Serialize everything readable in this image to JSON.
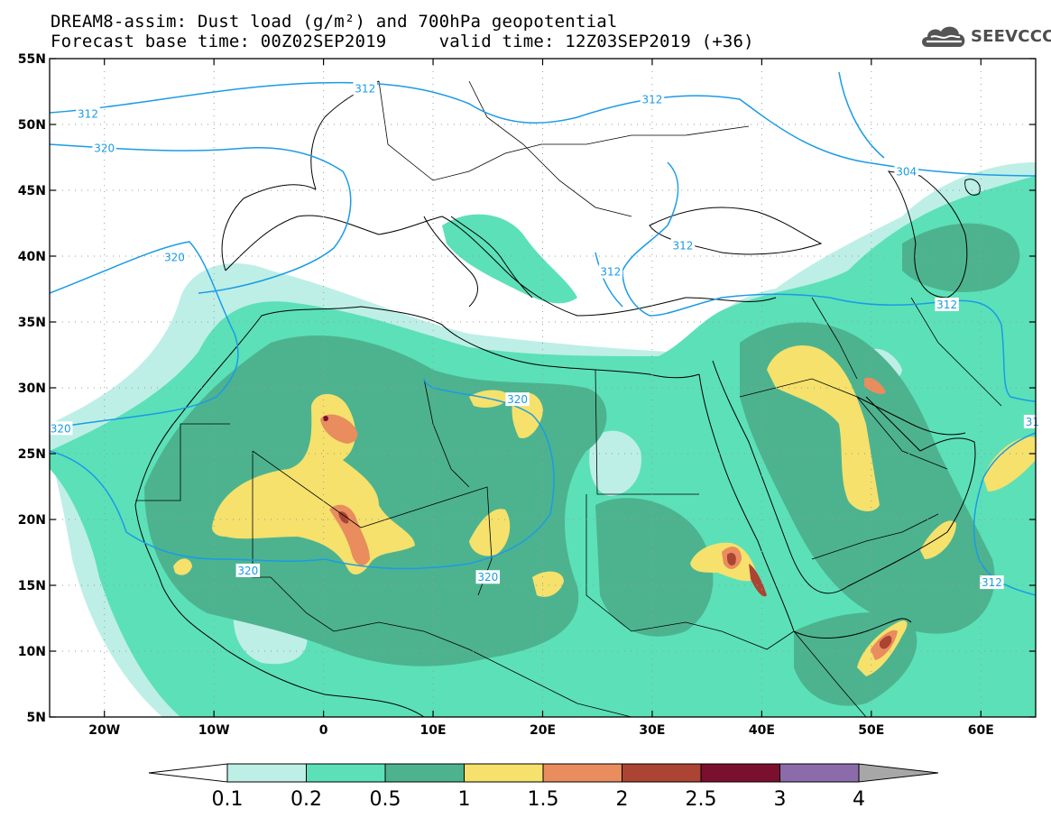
{
  "header": {
    "line1": "DREAM8-assim: Dust load (g/m²) and 700hPa geopotential",
    "line2": "Forecast base time: 00Z02SEP2019     valid time: 12Z03SEP2019 (+36)"
  },
  "logo": {
    "text": "SEEVCCC",
    "icon": "cloud-icon"
  },
  "map": {
    "lon_range": [
      -25,
      65
    ],
    "lat_range": [
      5,
      55
    ],
    "lon_ticks": [
      {
        "value": -20,
        "label": "20W"
      },
      {
        "value": -10,
        "label": "10W"
      },
      {
        "value": 0,
        "label": "0"
      },
      {
        "value": 10,
        "label": "10E"
      },
      {
        "value": 20,
        "label": "20E"
      },
      {
        "value": 30,
        "label": "30E"
      },
      {
        "value": 40,
        "label": "40E"
      },
      {
        "value": 50,
        "label": "50E"
      },
      {
        "value": 60,
        "label": "60E"
      }
    ],
    "lat_ticks": [
      {
        "value": 5,
        "label": "5N"
      },
      {
        "value": 10,
        "label": "10N"
      },
      {
        "value": 15,
        "label": "15N"
      },
      {
        "value": 20,
        "label": "20N"
      },
      {
        "value": 25,
        "label": "25N"
      },
      {
        "value": 30,
        "label": "30N"
      },
      {
        "value": 35,
        "label": "35N"
      },
      {
        "value": 40,
        "label": "40N"
      },
      {
        "value": 45,
        "label": "45N"
      },
      {
        "value": 50,
        "label": "50N"
      },
      {
        "value": 55,
        "label": "55N"
      }
    ],
    "contour_color": "#1a9be6",
    "contour_labels": [
      {
        "text": "312",
        "lon": -21.5,
        "lat": 50.8
      },
      {
        "text": "312",
        "lon": 3.8,
        "lat": 52.7
      },
      {
        "text": "312",
        "lon": 30.0,
        "lat": 51.9
      },
      {
        "text": "304",
        "lon": 53.2,
        "lat": 46.4
      },
      {
        "text": "320",
        "lon": -20.0,
        "lat": 48.2
      },
      {
        "text": "320",
        "lon": -13.6,
        "lat": 39.9
      },
      {
        "text": "312",
        "lon": 32.8,
        "lat": 40.8
      },
      {
        "text": "312",
        "lon": 26.2,
        "lat": 38.8
      },
      {
        "text": "312",
        "lon": 56.9,
        "lat": 36.3
      },
      {
        "text": "320",
        "lon": 17.7,
        "lat": 29.1
      },
      {
        "text": "320",
        "lon": -24.0,
        "lat": 26.9
      },
      {
        "text": "31",
        "lon": 64.7,
        "lat": 27.4
      },
      {
        "text": "320",
        "lon": -6.9,
        "lat": 16.1
      },
      {
        "text": "320",
        "lon": 15.0,
        "lat": 15.6
      },
      {
        "text": "312",
        "lon": 61.0,
        "lat": 15.2
      }
    ]
  },
  "colorbar": {
    "labels": [
      "0.1",
      "0.2",
      "0.5",
      "1",
      "1.5",
      "2",
      "2.5",
      "3",
      "4"
    ],
    "colors": [
      "#bdefe6",
      "#5ce0b8",
      "#4db38f",
      "#f5e16c",
      "#e98c5e",
      "#ab4433",
      "#7a0f2e",
      "#8c6baa"
    ],
    "low_color": "#ffffff",
    "high_color": "#a7a7a7"
  }
}
